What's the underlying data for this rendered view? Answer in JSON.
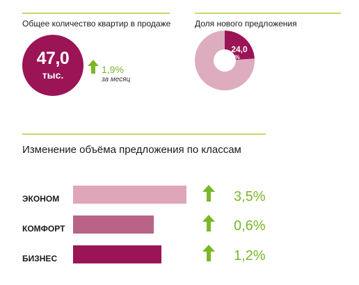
{
  "kpi": {
    "title": "Общее количество квартир в продаже",
    "value": "47,0",
    "unit": "тыс.",
    "change": "1,9%",
    "change_note": "за месяц"
  },
  "share": {
    "title": "Доля нового предложения",
    "value_label": "24,0",
    "unit_label": "%"
  },
  "colors": {
    "accent_green": "#7ab628",
    "rule_green": "#c5d96b",
    "econom": "#dfa6b9",
    "comfort": "#b96386",
    "business": "#9b1456",
    "donut_rest": "#ddacbf"
  },
  "chart_data": [
    {
      "type": "pie",
      "title": "Доля нового предложения",
      "slices": [
        {
          "label": "24,0 %",
          "value": 24.0
        },
        {
          "value": 76.0
        }
      ]
    },
    {
      "type": "bar",
      "title": "Изменение объёма предложения по классам",
      "categories": [
        "ЭКОНОМ",
        "КОМФОРТ",
        "БИЗНЕС"
      ],
      "values": [
        3.5,
        0.6,
        1.2
      ],
      "value_labels": [
        "3,5%",
        "0,6%",
        "1,2%"
      ],
      "relative_offer_volume": [
        1.0,
        0.71,
        0.78
      ]
    }
  ]
}
